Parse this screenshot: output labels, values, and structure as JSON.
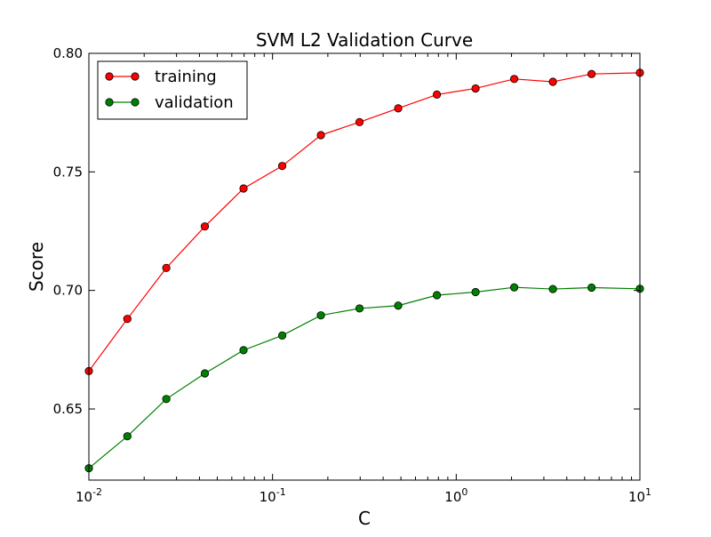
{
  "chart_data": {
    "type": "line",
    "title": "SVM L2 Validation Curve",
    "xlabel": "C",
    "ylabel": "Score",
    "xscale": "log",
    "xlim": [
      0.01,
      10
    ],
    "ylim": [
      0.62,
      0.8
    ],
    "grid": false,
    "legend_position": "top-left",
    "x": [
      0.01,
      0.0162,
      0.0264,
      0.0428,
      0.0695,
      0.1129,
      0.1833,
      0.2976,
      0.4833,
      0.7848,
      1.2743,
      2.0691,
      3.3598,
      5.4556,
      10
    ],
    "x_tick_labels": [
      {
        "base": "10",
        "exp": "-2",
        "value": 0.01
      },
      {
        "base": "10",
        "exp": "-1",
        "value": 0.1
      },
      {
        "base": "10",
        "exp": "0",
        "value": 1
      },
      {
        "base": "10",
        "exp": "1",
        "value": 10
      }
    ],
    "y_tick_labels": [
      {
        "label": "0.65",
        "value": 0.65
      },
      {
        "label": "0.70",
        "value": 0.7
      },
      {
        "label": "0.75",
        "value": 0.75
      },
      {
        "label": "0.80",
        "value": 0.8
      }
    ],
    "series": [
      {
        "name": "training",
        "color": "#ff0000",
        "values": [
          0.666,
          0.688,
          0.7095,
          0.727,
          0.743,
          0.7525,
          0.7655,
          0.771,
          0.7768,
          0.7826,
          0.7852,
          0.7892,
          0.788,
          0.7913,
          0.7918
        ]
      },
      {
        "name": "validation",
        "color": "#008000",
        "values": [
          0.625,
          0.6385,
          0.6542,
          0.665,
          0.6748,
          0.681,
          0.6895,
          0.6924,
          0.6936,
          0.698,
          0.6993,
          0.7013,
          0.7006,
          0.7012,
          0.7007
        ]
      }
    ]
  }
}
